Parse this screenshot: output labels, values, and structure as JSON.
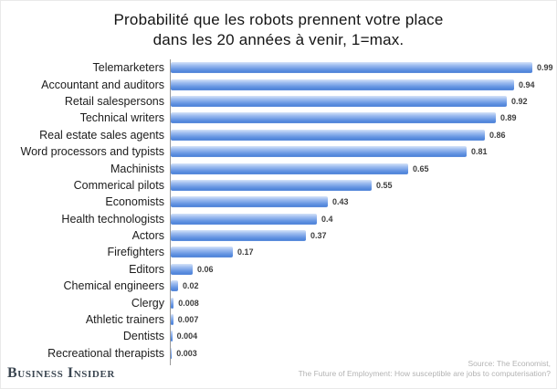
{
  "title": {
    "line1": "Probabilité que les robots prennent votre place",
    "line2": "dans les 20 années à venir, 1=max."
  },
  "chart_data": {
    "type": "bar",
    "orientation": "horizontal",
    "title": "Probabilité que les robots prennent votre place dans les 20 années à venir, 1=max.",
    "xlabel": "",
    "ylabel": "",
    "xlim": [
      0,
      1
    ],
    "grid": false,
    "legend": false,
    "bar_color": "#5b8edb",
    "categories": [
      "Telemarketers",
      "Accountant and auditors",
      "Retail salespersons",
      "Technical writers",
      "Real estate sales agents",
      "Word processors and typists",
      "Machinists",
      "Commerical pilots",
      "Economists",
      "Health technologists",
      "Actors",
      "Firefighters",
      "Editors",
      "Chemical engineers",
      "Clergy",
      "Athletic trainers",
      "Dentists",
      "Recreational therapists"
    ],
    "values": [
      0.99,
      0.94,
      0.92,
      0.89,
      0.86,
      0.81,
      0.65,
      0.55,
      0.43,
      0.4,
      0.37,
      0.17,
      0.06,
      0.02,
      0.008,
      0.007,
      0.004,
      0.003
    ],
    "value_labels": [
      "0.99",
      "0.94",
      "0.92",
      "0.89",
      "0.86",
      "0.81",
      "0.65",
      "0.55",
      "0.43",
      "0.4",
      "0.37",
      "0.17",
      "0.06",
      "0.02",
      "0.008",
      "0.007",
      "0.004",
      "0.003"
    ]
  },
  "footer": {
    "brand": "Business Insider",
    "source_line1": "Source: The Economist,",
    "source_line2": "The Future of Employment: How susceptible are jobs to computerisation?"
  },
  "colors": {
    "axis": "#9a9a9a",
    "brand_text": "#3a4550",
    "source_text": "#b3b3b3"
  }
}
